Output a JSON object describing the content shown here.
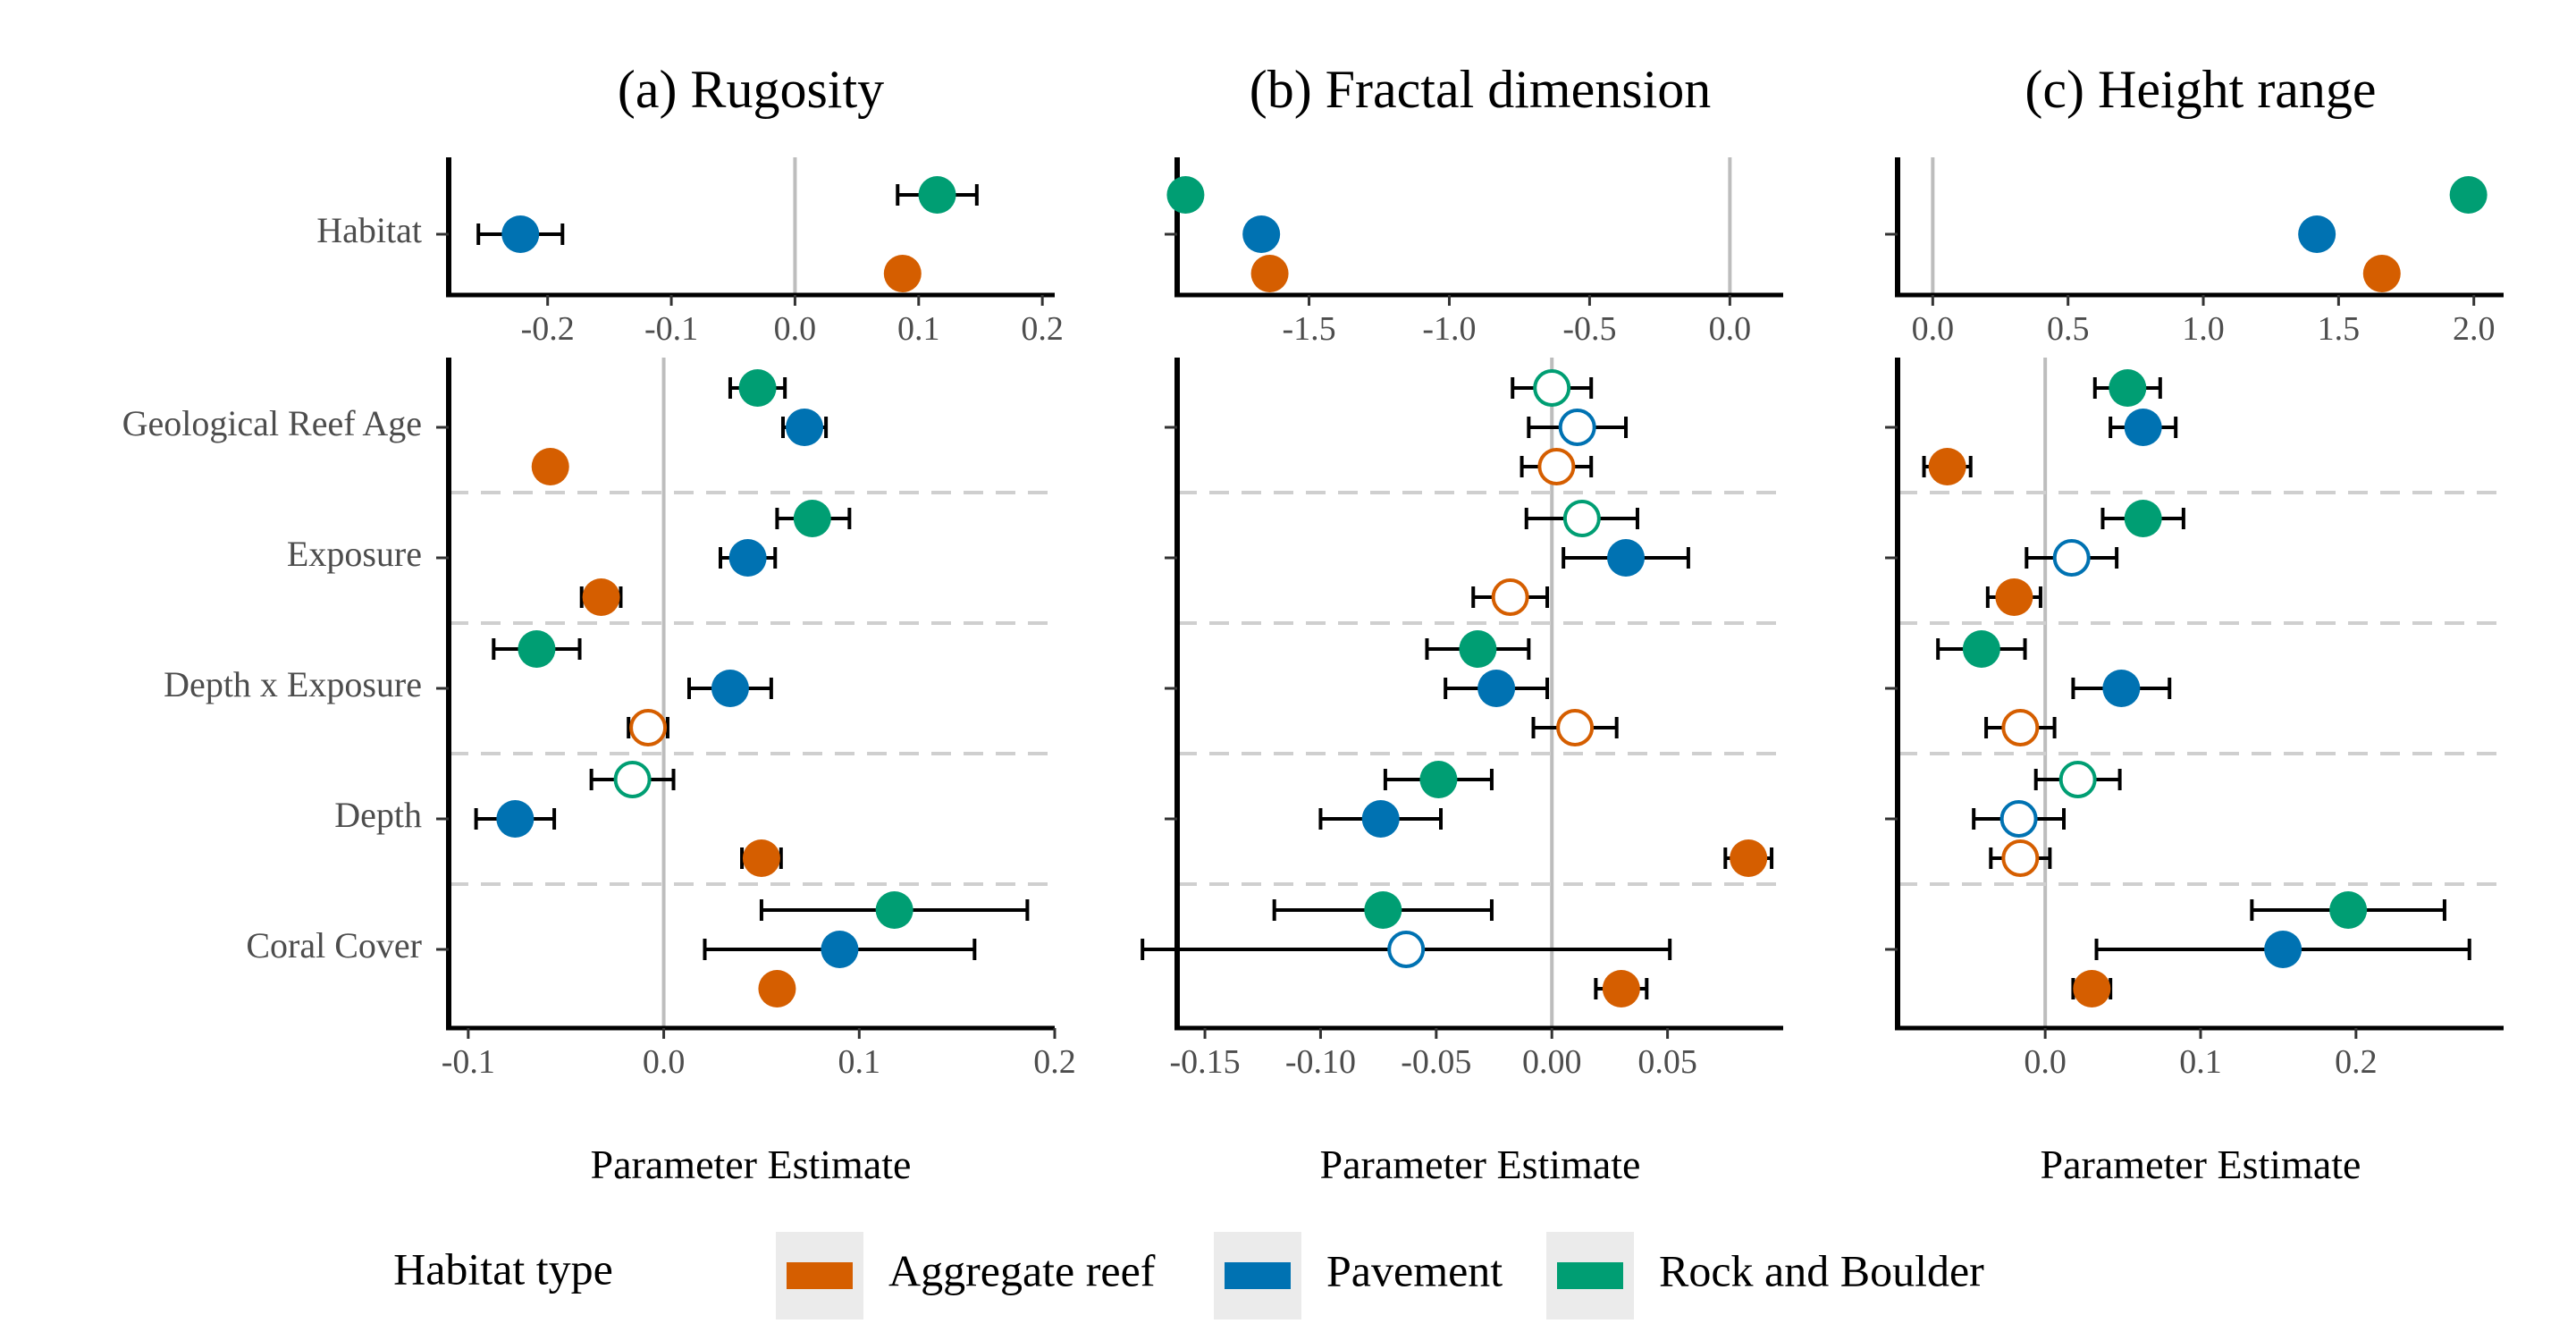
{
  "legend": {
    "title": "Habitat type",
    "items": [
      {
        "key": "aggregate",
        "label": "Aggregate reef",
        "color": "#D55E00"
      },
      {
        "key": "pavement",
        "label": "Pavement",
        "color": "#0072B2"
      },
      {
        "key": "rock",
        "label": "Rock and Boulder",
        "color": "#009E73"
      }
    ]
  },
  "y_labels": [
    "Habitat",
    "Geological Reef Age",
    "Exposure",
    "Depth x Exposure",
    "Depth",
    "Coral Cover"
  ],
  "chart_data": [
    {
      "type": "scatter",
      "title": "(a) Rugosity",
      "xlabel": "Parameter Estimate",
      "series_order": [
        "rock",
        "pavement",
        "aggregate"
      ],
      "top": {
        "xlim": [
          -0.28,
          0.21
        ],
        "ticks": [
          -0.2,
          -0.1,
          0.0,
          0.1,
          0.2
        ],
        "tick_labels": [
          "-0.2",
          "-0.1",
          "0.0",
          "0.1",
          "0.2"
        ],
        "rows": [
          {
            "name": "Habitat",
            "points": {
              "rock": {
                "est": 0.115,
                "lo": 0.083,
                "hi": 0.147,
                "filled": true
              },
              "pavement": {
                "est": -0.222,
                "lo": -0.256,
                "hi": -0.188,
                "filled": true
              },
              "aggregate": {
                "est": 0.087,
                "lo": null,
                "hi": null,
                "filled": true
              }
            }
          }
        ]
      },
      "bottom": {
        "xlim": [
          -0.11,
          0.2
        ],
        "ticks": [
          -0.1,
          0.0,
          0.1,
          0.2
        ],
        "tick_labels": [
          "-0.1",
          "0.0",
          "0.1",
          "0.2"
        ],
        "rows": [
          {
            "name": "Geological Reef Age",
            "points": {
              "rock": {
                "est": 0.048,
                "lo": 0.034,
                "hi": 0.062,
                "filled": true
              },
              "pavement": {
                "est": 0.072,
                "lo": 0.061,
                "hi": 0.083,
                "filled": true
              },
              "aggregate": {
                "est": -0.058,
                "lo": null,
                "hi": null,
                "filled": true
              }
            }
          },
          {
            "name": "Exposure",
            "points": {
              "rock": {
                "est": 0.076,
                "lo": 0.058,
                "hi": 0.095,
                "filled": true
              },
              "pavement": {
                "est": 0.043,
                "lo": 0.029,
                "hi": 0.057,
                "filled": true
              },
              "aggregate": {
                "est": -0.032,
                "lo": -0.042,
                "hi": -0.022,
                "filled": true
              }
            }
          },
          {
            "name": "Depth x Exposure",
            "points": {
              "rock": {
                "est": -0.065,
                "lo": -0.087,
                "hi": -0.043,
                "filled": true
              },
              "pavement": {
                "est": 0.034,
                "lo": 0.013,
                "hi": 0.055,
                "filled": true
              },
              "aggregate": {
                "est": -0.008,
                "lo": -0.018,
                "hi": 0.002,
                "filled": false
              }
            }
          },
          {
            "name": "Depth",
            "points": {
              "rock": {
                "est": -0.016,
                "lo": -0.037,
                "hi": 0.005,
                "filled": false
              },
              "pavement": {
                "est": -0.076,
                "lo": -0.096,
                "hi": -0.056,
                "filled": true
              },
              "aggregate": {
                "est": 0.05,
                "lo": 0.04,
                "hi": 0.06,
                "filled": true
              }
            }
          },
          {
            "name": "Coral Cover",
            "points": {
              "rock": {
                "est": 0.118,
                "lo": 0.05,
                "hi": 0.186,
                "filled": true
              },
              "pavement": {
                "est": 0.09,
                "lo": 0.021,
                "hi": 0.159,
                "filled": true
              },
              "aggregate": {
                "est": 0.058,
                "lo": null,
                "hi": null,
                "filled": true
              }
            }
          }
        ]
      }
    },
    {
      "type": "scatter",
      "title": "(b) Fractal dimension",
      "xlabel": "Parameter Estimate",
      "series_order": [
        "rock",
        "pavement",
        "aggregate"
      ],
      "top": {
        "xlim": [
          -1.97,
          0.19
        ],
        "ticks": [
          -1.5,
          -1.0,
          -0.5,
          0.0
        ],
        "tick_labels": [
          "-1.5",
          "-1.0",
          "-0.5",
          "0.0"
        ],
        "rows": [
          {
            "name": "Habitat",
            "points": {
              "rock": {
                "est": -1.94,
                "lo": null,
                "hi": null,
                "filled": true
              },
              "pavement": {
                "est": -1.67,
                "lo": null,
                "hi": null,
                "filled": true
              },
              "aggregate": {
                "est": -1.64,
                "lo": null,
                "hi": null,
                "filled": true
              }
            }
          }
        ]
      },
      "bottom": {
        "xlim": [
          -0.162,
          0.1
        ],
        "ticks": [
          -0.15,
          -0.1,
          -0.05,
          0.0,
          0.05
        ],
        "tick_labels": [
          "-0.15",
          "-0.10",
          "-0.05",
          "0.00",
          "0.05"
        ],
        "rows": [
          {
            "name": "Geological Reef Age",
            "points": {
              "rock": {
                "est": 0.0,
                "lo": -0.017,
                "hi": 0.017,
                "filled": false
              },
              "pavement": {
                "est": 0.011,
                "lo": -0.01,
                "hi": 0.032,
                "filled": false
              },
              "aggregate": {
                "est": 0.002,
                "lo": -0.013,
                "hi": 0.017,
                "filled": false
              }
            }
          },
          {
            "name": "Exposure",
            "points": {
              "rock": {
                "est": 0.013,
                "lo": -0.011,
                "hi": 0.037,
                "filled": false
              },
              "pavement": {
                "est": 0.032,
                "lo": 0.005,
                "hi": 0.059,
                "filled": true
              },
              "aggregate": {
                "est": -0.018,
                "lo": -0.034,
                "hi": -0.002,
                "filled": false
              }
            }
          },
          {
            "name": "Depth x Exposure",
            "points": {
              "rock": {
                "est": -0.032,
                "lo": -0.054,
                "hi": -0.01,
                "filled": true
              },
              "pavement": {
                "est": -0.024,
                "lo": -0.046,
                "hi": -0.002,
                "filled": true
              },
              "aggregate": {
                "est": 0.01,
                "lo": -0.008,
                "hi": 0.028,
                "filled": false
              }
            }
          },
          {
            "name": "Depth",
            "points": {
              "rock": {
                "est": -0.049,
                "lo": -0.072,
                "hi": -0.026,
                "filled": true
              },
              "pavement": {
                "est": -0.074,
                "lo": -0.1,
                "hi": -0.048,
                "filled": true
              },
              "aggregate": {
                "est": 0.085,
                "lo": 0.075,
                "hi": 0.095,
                "filled": true
              }
            }
          },
          {
            "name": "Coral Cover",
            "points": {
              "rock": {
                "est": -0.073,
                "lo": -0.12,
                "hi": -0.026,
                "filled": true
              },
              "pavement": {
                "est": -0.063,
                "lo": -0.177,
                "hi": 0.051,
                "filled": false
              },
              "aggregate": {
                "est": 0.03,
                "lo": 0.019,
                "hi": 0.041,
                "filled": true
              }
            }
          }
        ]
      }
    },
    {
      "type": "scatter",
      "title": "(c) Height range",
      "xlabel": "Parameter Estimate",
      "series_order": [
        "rock",
        "pavement",
        "aggregate"
      ],
      "top": {
        "xlim": [
          -0.13,
          2.11
        ],
        "ticks": [
          0.0,
          0.5,
          1.0,
          1.5,
          2.0
        ],
        "tick_labels": [
          "0.0",
          "0.5",
          "1.0",
          "1.5",
          "2.0"
        ],
        "rows": [
          {
            "name": "Habitat",
            "points": {
              "rock": {
                "est": 1.98,
                "lo": null,
                "hi": null,
                "filled": true
              },
              "pavement": {
                "est": 1.42,
                "lo": null,
                "hi": null,
                "filled": true
              },
              "aggregate": {
                "est": 1.66,
                "lo": null,
                "hi": null,
                "filled": true
              }
            }
          }
        ]
      },
      "bottom": {
        "xlim": [
          -0.095,
          0.295
        ],
        "ticks": [
          0.0,
          0.1,
          0.2
        ],
        "tick_labels": [
          "0.0",
          "0.1",
          "0.2"
        ],
        "rows": [
          {
            "name": "Geological Reef Age",
            "points": {
              "rock": {
                "est": 0.053,
                "lo": 0.032,
                "hi": 0.074,
                "filled": true
              },
              "pavement": {
                "est": 0.063,
                "lo": 0.042,
                "hi": 0.084,
                "filled": true
              },
              "aggregate": {
                "est": -0.063,
                "lo": -0.078,
                "hi": -0.048,
                "filled": true
              }
            }
          },
          {
            "name": "Exposure",
            "points": {
              "rock": {
                "est": 0.063,
                "lo": 0.037,
                "hi": 0.089,
                "filled": true
              },
              "pavement": {
                "est": 0.017,
                "lo": -0.012,
                "hi": 0.046,
                "filled": false
              },
              "aggregate": {
                "est": -0.02,
                "lo": -0.037,
                "hi": -0.003,
                "filled": true
              }
            }
          },
          {
            "name": "Depth x Exposure",
            "points": {
              "rock": {
                "est": -0.041,
                "lo": -0.069,
                "hi": -0.013,
                "filled": true
              },
              "pavement": {
                "est": 0.049,
                "lo": 0.018,
                "hi": 0.08,
                "filled": true
              },
              "aggregate": {
                "est": -0.016,
                "lo": -0.038,
                "hi": 0.006,
                "filled": false
              }
            }
          },
          {
            "name": "Depth",
            "points": {
              "rock": {
                "est": 0.021,
                "lo": -0.006,
                "hi": 0.048,
                "filled": false
              },
              "pavement": {
                "est": -0.017,
                "lo": -0.046,
                "hi": 0.012,
                "filled": false
              },
              "aggregate": {
                "est": -0.016,
                "lo": -0.035,
                "hi": 0.003,
                "filled": false
              }
            }
          },
          {
            "name": "Coral Cover",
            "points": {
              "rock": {
                "est": 0.195,
                "lo": 0.133,
                "hi": 0.257,
                "filled": true
              },
              "pavement": {
                "est": 0.153,
                "lo": 0.033,
                "hi": 0.273,
                "filled": true
              },
              "aggregate": {
                "est": 0.03,
                "lo": 0.018,
                "hi": 0.042,
                "filled": true
              }
            }
          }
        ]
      }
    }
  ]
}
